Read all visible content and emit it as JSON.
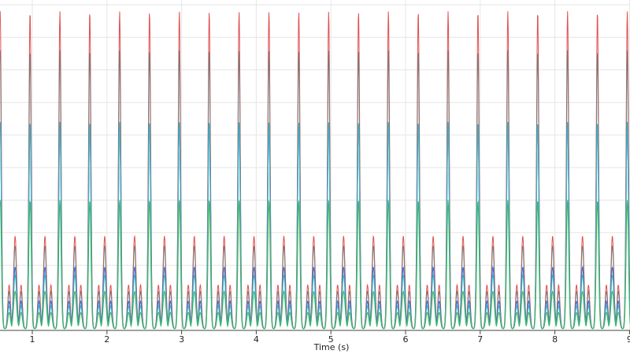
{
  "chart_data": {
    "type": "line",
    "xlabel": "Time (s)",
    "xlim": [
      0.57,
      9.05
    ],
    "ylim": [
      0,
      1
    ],
    "x_ticks": [
      1,
      2,
      3,
      4,
      5,
      6,
      7,
      8,
      9
    ],
    "x_tick_labels": [
      "1",
      "2",
      "3",
      "4",
      "5",
      "6",
      "7",
      "8",
      "9"
    ],
    "grid": true,
    "legend": "none",
    "period": 0.4,
    "first_peak_time": 0.57,
    "trough_level": 0.005,
    "series": [
      {
        "color": "#e05050",
        "major_peak": 0.98,
        "minor_peak": 0.29,
        "minor_trough": 0.14
      },
      {
        "color": "#7a7a7a",
        "major_peak": 0.86,
        "minor_peak": 0.26,
        "minor_trough": 0.12
      },
      {
        "color": "#3f6ad8",
        "major_peak": 0.64,
        "minor_peak": 0.195,
        "minor_trough": 0.09
      },
      {
        "color": "#3ab8c8",
        "major_peak": 0.64,
        "minor_peak": 0.17,
        "minor_trough": 0.075
      },
      {
        "color": "#3cb55a",
        "major_peak": 0.4,
        "minor_peak": 0.12,
        "minor_trough": 0.055
      }
    ]
  }
}
